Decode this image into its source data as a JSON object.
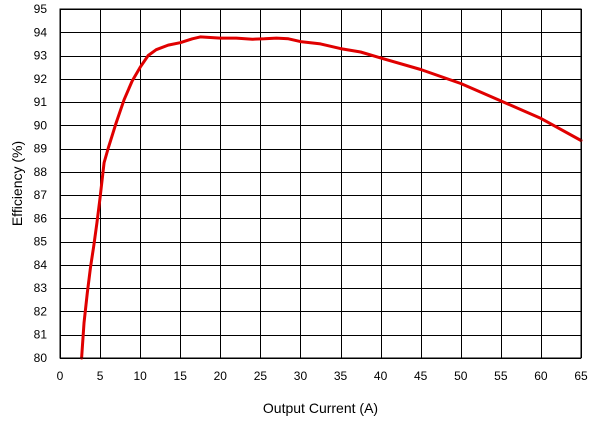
{
  "chart_data": {
    "type": "line",
    "title": "",
    "xlabel": "Output Current (A)",
    "ylabel": "Efficiency (%)",
    "xlim": [
      0,
      65
    ],
    "ylim": [
      80,
      95
    ],
    "xticks": [
      0,
      5,
      10,
      15,
      20,
      25,
      30,
      35,
      40,
      45,
      50,
      55,
      60,
      65
    ],
    "yticks": [
      80,
      81,
      82,
      83,
      84,
      85,
      86,
      87,
      88,
      89,
      90,
      91,
      92,
      93,
      94,
      95
    ],
    "grid": true,
    "legend": "none",
    "series": [
      {
        "color": "#e00000",
        "x": [
          2.7,
          3.0,
          3.4,
          3.8,
          4.2,
          4.6,
          5.0,
          5.5,
          6.0,
          7.0,
          8.0,
          9.0,
          10.0,
          11.0,
          12.0,
          13.5,
          15.0,
          16.5,
          17.5,
          18.5,
          20.0,
          22.0,
          24.0,
          25.5,
          27.0,
          28.5,
          30.0,
          32.5,
          35.0,
          37.5,
          40.0,
          45.0,
          50.0,
          55.0,
          60.0,
          65.0
        ],
        "y": [
          80.0,
          81.5,
          82.8,
          83.9,
          84.8,
          85.8,
          86.9,
          88.4,
          89.0,
          90.1,
          91.1,
          91.9,
          92.5,
          93.0,
          93.25,
          93.45,
          93.55,
          93.72,
          93.8,
          93.78,
          93.75,
          93.75,
          93.7,
          93.72,
          93.75,
          93.72,
          93.6,
          93.5,
          93.3,
          93.15,
          92.9,
          92.4,
          91.8,
          91.05,
          90.3,
          89.35
        ]
      }
    ]
  }
}
